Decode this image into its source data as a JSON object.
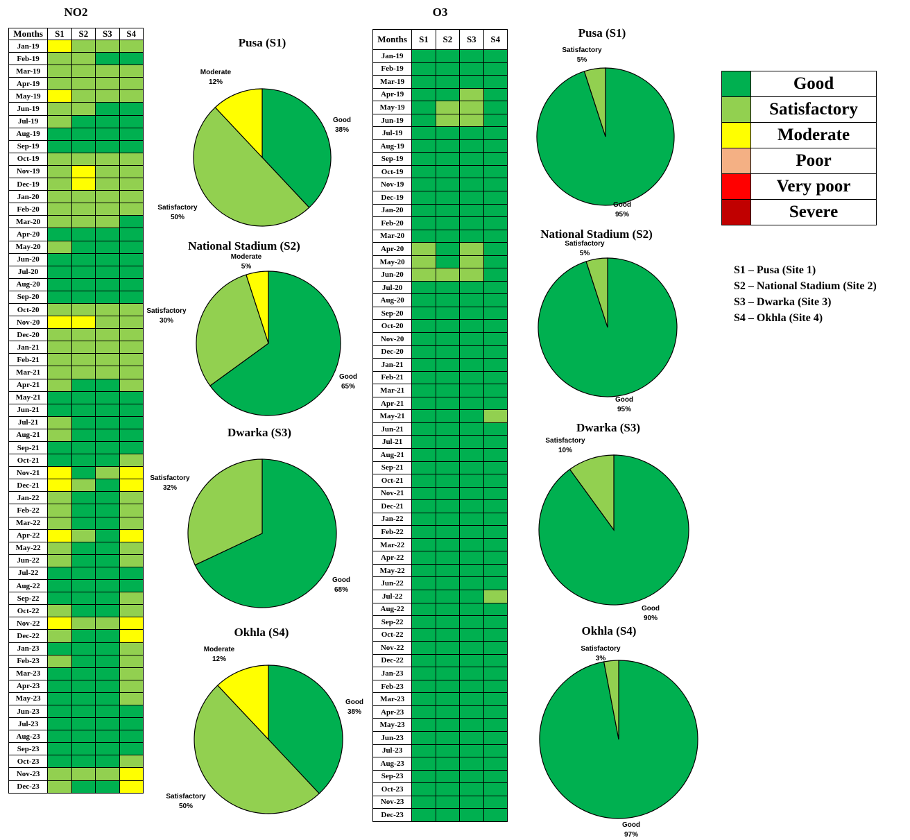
{
  "colors": {
    "G": "#00b050",
    "S": "#92d050",
    "M": "#ffff00",
    "P": "#f4b084",
    "V": "#ff0000",
    "X": "#c00000"
  },
  "months": [
    "Jan-19",
    "Feb-19",
    "Mar-19",
    "Apr-19",
    "May-19",
    "Jun-19",
    "Jul-19",
    "Aug-19",
    "Sep-19",
    "Oct-19",
    "Nov-19",
    "Dec-19",
    "Jan-20",
    "Feb-20",
    "Mar-20",
    "Apr-20",
    "May-20",
    "Jun-20",
    "Jul-20",
    "Aug-20",
    "Sep-20",
    "Oct-20",
    "Nov-20",
    "Dec-20",
    "Jan-21",
    "Feb-21",
    "Mar-21",
    "Apr-21",
    "May-21",
    "Jun-21",
    "Jul-21",
    "Aug-21",
    "Sep-21",
    "Oct-21",
    "Nov-21",
    "Dec-21",
    "Jan-22",
    "Feb-22",
    "Mar-22",
    "Apr-22",
    "May-22",
    "Jun-22",
    "Jul-22",
    "Aug-22",
    "Sep-22",
    "Oct-22",
    "Nov-22",
    "Dec-22",
    "Jan-23",
    "Feb-23",
    "Mar-23",
    "Apr-23",
    "May-23",
    "Jun-23",
    "Jul-23",
    "Aug-23",
    "Sep-23",
    "Oct-23",
    "Nov-23",
    "Dec-23"
  ],
  "no2": {
    "title": "NO2",
    "header": [
      "Months",
      "S1",
      "S2",
      "S3",
      "S4"
    ],
    "rows": [
      "MSSS",
      "SSGG",
      "SSSS",
      "SSSS",
      "MSSS",
      "SSGG",
      "SGGG",
      "GGGG",
      "GGGG",
      "SSSS",
      "SMSS",
      "SMSS",
      "SSSS",
      "SSSS",
      "SSSG",
      "GGGG",
      "SGGG",
      "GGGG",
      "GGGG",
      "GGGG",
      "GGGG",
      "SSSS",
      "MMSS",
      "SSSS",
      "SSSS",
      "SSSS",
      "SSSS",
      "SGGS",
      "GGGG",
      "GGGG",
      "SGGG",
      "SGGG",
      "GGGG",
      "GGGS",
      "MGSM",
      "MSGM",
      "SGGS",
      "SGGS",
      "SGGS",
      "MSGM",
      "SGGS",
      "SGGS",
      "GGGG",
      "GGGG",
      "GGGS",
      "SGGS",
      "MSSM",
      "SGGM",
      "GGGS",
      "SGGS",
      "GGGS",
      "GGGS",
      "GGGS",
      "GGGG",
      "GGGG",
      "GGGG",
      "GGGG",
      "GGGS",
      "SSSM",
      "SGGM"
    ]
  },
  "o3": {
    "title": "O3",
    "header": [
      "Months",
      "S1",
      "S2",
      "S3",
      "S4"
    ],
    "rows": [
      "GGGG",
      "GGGG",
      "GGGG",
      "GGSG",
      "GSSG",
      "GSSG",
      "GGGG",
      "GGGG",
      "GGGG",
      "GGGG",
      "GGGG",
      "GGGG",
      "GGGG",
      "GGGG",
      "GGGG",
      "SGSG",
      "SGSG",
      "SSSG",
      "GGGG",
      "GGGG",
      "GGGG",
      "GGGG",
      "GGGG",
      "GGGG",
      "GGGG",
      "GGGG",
      "GGGG",
      "GGGG",
      "GGGS",
      "GGGG",
      "GGGG",
      "GGGG",
      "GGGG",
      "GGGG",
      "GGGG",
      "GGGG",
      "GGGG",
      "GGGG",
      "GGGG",
      "GGGG",
      "GGGG",
      "GGGG",
      "GGGS",
      "GGGG",
      "GGGG",
      "GGGG",
      "GGGG",
      "GGGG",
      "GGGG",
      "GGGG",
      "GGGG",
      "GGGG",
      "GGGG",
      "GGGG",
      "GGGG",
      "GGGG",
      "GGGG",
      "GGGG",
      "GGGG",
      "GGGG"
    ]
  },
  "legend": [
    {
      "label": "Good",
      "color": "#00b050"
    },
    {
      "label": "Satisfactory",
      "color": "#92d050"
    },
    {
      "label": "Moderate",
      "color": "#ffff00"
    },
    {
      "label": "Poor",
      "color": "#f4b084"
    },
    {
      "label": "Very poor",
      "color": "#ff0000"
    },
    {
      "label": "Severe",
      "color": "#c00000"
    }
  ],
  "sites": [
    "S1 – Pusa (Site 1)",
    "S2 – National Stadium (Site 2)",
    "S3 – Dwarka (Site 3)",
    "S4 – Okhla (Site 4)"
  ],
  "chart_data": [
    {
      "type": "pie",
      "title": "Pusa (S1)",
      "slices": [
        {
          "label": "Good",
          "value": 38,
          "text": "38%"
        },
        {
          "label": "Satisfactory",
          "value": 50,
          "text": "50%"
        },
        {
          "label": "Moderate",
          "value": 12,
          "text": "12%"
        }
      ]
    },
    {
      "type": "pie",
      "title": "National Stadium (S2)",
      "slices": [
        {
          "label": "Good",
          "value": 65,
          "text": "65%"
        },
        {
          "label": "Satisfactory",
          "value": 30,
          "text": "30%"
        },
        {
          "label": "Moderate",
          "value": 5,
          "text": "5%"
        }
      ]
    },
    {
      "type": "pie",
      "title": "Dwarka (S3)",
      "slices": [
        {
          "label": "Good",
          "value": 68,
          "text": "68%"
        },
        {
          "label": "Satisfactory",
          "value": 32,
          "text": "32%"
        }
      ]
    },
    {
      "type": "pie",
      "title": "Okhla (S4)",
      "slices": [
        {
          "label": "Good",
          "value": 38,
          "text": "38%"
        },
        {
          "label": "Satisfactory",
          "value": 50,
          "text": "50%"
        },
        {
          "label": "Moderate",
          "value": 12,
          "text": "12%"
        }
      ]
    },
    {
      "type": "pie",
      "title": "Pusa (S1)",
      "slices": [
        {
          "label": "Good",
          "value": 95,
          "text": "95%"
        },
        {
          "label": "Satisfactory",
          "value": 5,
          "text": "5%"
        }
      ]
    },
    {
      "type": "pie",
      "title": "National Stadium (S2)",
      "slices": [
        {
          "label": "Good",
          "value": 95,
          "text": "95%"
        },
        {
          "label": "Satisfactory",
          "value": 5,
          "text": "5%"
        }
      ]
    },
    {
      "type": "pie",
      "title": "Dwarka (S3)",
      "slices": [
        {
          "label": "Good",
          "value": 90,
          "text": "90%"
        },
        {
          "label": "Satisfactory",
          "value": 10,
          "text": "10%"
        }
      ]
    },
    {
      "type": "pie",
      "title": "Okhla (S4)",
      "slices": [
        {
          "label": "Good",
          "value": 97,
          "text": "97%"
        },
        {
          "label": "Satisfactory",
          "value": 3,
          "text": "3%"
        }
      ]
    }
  ]
}
